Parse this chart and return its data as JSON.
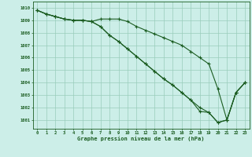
{
  "title": "Graphe pression niveau de la mer (hPa)",
  "background_color": "#cceee8",
  "grid_color": "#99ccbb",
  "line_color": "#1a5c20",
  "xlim": [
    -0.5,
    23.5
  ],
  "ylim": [
    1000.3,
    1010.5
  ],
  "yticks": [
    1001,
    1002,
    1003,
    1004,
    1005,
    1006,
    1007,
    1008,
    1009,
    1010
  ],
  "xticks": [
    0,
    1,
    2,
    3,
    4,
    5,
    6,
    7,
    8,
    9,
    10,
    11,
    12,
    13,
    14,
    15,
    16,
    17,
    18,
    19,
    20,
    21,
    22,
    23
  ],
  "series1": [
    1009.8,
    1009.5,
    1009.3,
    1009.1,
    1009.0,
    1009.0,
    1008.9,
    1009.1,
    1009.1,
    1009.1,
    1008.9,
    1008.5,
    1008.2,
    1007.9,
    1007.6,
    1007.3,
    1007.0,
    1006.5,
    1006.0,
    1005.5,
    1003.5,
    1001.0,
    1003.2,
    1004.0
  ],
  "series2": [
    1009.8,
    1009.5,
    1009.3,
    1009.1,
    1009.0,
    1009.0,
    1008.9,
    1008.5,
    1007.8,
    1007.3,
    1006.7,
    1006.1,
    1005.5,
    1004.9,
    1004.3,
    1003.8,
    1003.2,
    1002.6,
    1002.0,
    1001.6,
    1000.8,
    1001.0,
    1003.2,
    1004.0
  ],
  "series3": [
    1009.8,
    1009.5,
    1009.3,
    1009.1,
    1009.0,
    1009.0,
    1008.9,
    1008.5,
    1007.8,
    1007.3,
    1006.7,
    1006.1,
    1005.5,
    1004.9,
    1004.3,
    1003.8,
    1003.2,
    1002.6,
    1001.7,
    1001.6,
    1000.8,
    1001.0,
    1003.2,
    1004.0
  ]
}
